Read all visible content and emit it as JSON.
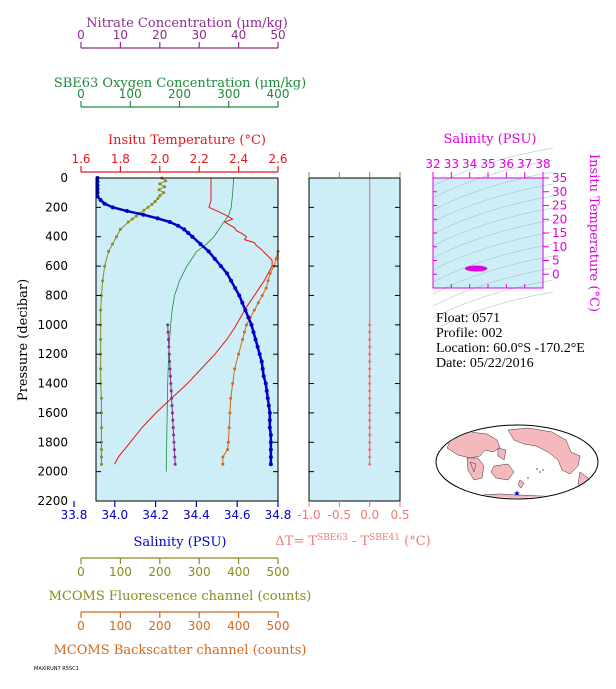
{
  "colors": {
    "nitrate": "#8b2e8b",
    "oxygen": "#1e8b3c",
    "temperature": "#e51717",
    "salinity": "#0000c8",
    "fluorescence": "#8b8b1e",
    "backscatter": "#d2691e",
    "delta_t": "#f07878",
    "ts_axis": "#e000e0",
    "panel_bg": "#cdeef6"
  },
  "chart_data": [
    {
      "type": "line",
      "id": "profile-panel",
      "ylabel": "Pressure (decibar)",
      "ylim": [
        2200,
        0
      ],
      "yticks": [
        "0",
        "200",
        "400",
        "600",
        "800",
        "1000",
        "1200",
        "1400",
        "1600",
        "1800",
        "2000",
        "2200"
      ],
      "axes": [
        {
          "key": "nitrate",
          "title": "Nitrate Concentration (μm/kg)",
          "ticks": [
            "0",
            "10",
            "20",
            "30",
            "40",
            "50"
          ],
          "range": [
            0,
            50
          ]
        },
        {
          "key": "oxygen",
          "title": "SBE63 Oxygen Concentration (μm/kg)",
          "ticks": [
            "0",
            "100",
            "200",
            "300",
            "400"
          ],
          "range": [
            0,
            400
          ]
        },
        {
          "key": "temperature",
          "title": "Insitu Temperature (°C)",
          "ticks": [
            "1.6",
            "1.8",
            "2.0",
            "2.2",
            "2.4",
            "2.6"
          ],
          "range": [
            1.6,
            2.6
          ]
        },
        {
          "key": "salinity",
          "title": "Salinity (PSU)",
          "ticks": [
            "33.8",
            "34.0",
            "34.2",
            "34.4",
            "34.6",
            "34.8"
          ],
          "range": [
            33.8,
            34.8
          ]
        },
        {
          "key": "fluorescence",
          "title": "MCOMS Fluorescence channel (counts)",
          "ticks": [
            "0",
            "100",
            "200",
            "300",
            "400",
            "500"
          ],
          "range": [
            0,
            500
          ]
        },
        {
          "key": "backscatter",
          "title": "MCOMS Backscatter channel (counts)",
          "ticks": [
            "0",
            "100",
            "200",
            "300",
            "400",
            "500"
          ],
          "range": [
            0,
            500
          ]
        }
      ],
      "series": [
        {
          "key": "salinity",
          "axis": "salinity",
          "markers": true,
          "p": [
            0,
            25,
            50,
            75,
            100,
            125,
            150,
            175,
            200,
            225,
            250,
            275,
            300,
            325,
            350,
            375,
            400,
            450,
            500,
            550,
            600,
            650,
            700,
            750,
            800,
            850,
            900,
            950,
            1000,
            1050,
            1100,
            1150,
            1200,
            1250,
            1300,
            1350,
            1400,
            1450,
            1500,
            1550,
            1600,
            1650,
            1700,
            1750,
            1800,
            1850,
            1900,
            1950
          ],
          "v": [
            33.915,
            33.915,
            33.915,
            33.915,
            33.915,
            33.915,
            33.93,
            33.95,
            33.99,
            34.06,
            34.14,
            34.21,
            34.27,
            34.31,
            34.34,
            34.36,
            34.38,
            34.42,
            34.46,
            34.49,
            34.52,
            34.55,
            34.57,
            34.59,
            34.61,
            34.625,
            34.64,
            34.655,
            34.67,
            34.68,
            34.69,
            34.7,
            34.71,
            34.72,
            34.725,
            34.73,
            34.74,
            34.745,
            34.75,
            34.755,
            34.76,
            34.76,
            34.76,
            34.765,
            34.765,
            34.765,
            34.765,
            34.765
          ]
        },
        {
          "key": "temperature",
          "axis": "temperature",
          "markers": false,
          "p": [
            0,
            50,
            100,
            150,
            200,
            230,
            250,
            280,
            300,
            340,
            360,
            380,
            400,
            420,
            440,
            460,
            480,
            520,
            560,
            600,
            650,
            700,
            760,
            820,
            880,
            950,
            1020,
            1100,
            1200,
            1300,
            1400,
            1500,
            1600,
            1700,
            1800,
            1850,
            1900,
            1950
          ],
          "v": [
            2.26,
            2.26,
            2.26,
            2.26,
            2.25,
            2.3,
            2.33,
            2.37,
            2.33,
            2.38,
            2.39,
            2.42,
            2.44,
            2.43,
            2.48,
            2.49,
            2.51,
            2.54,
            2.57,
            2.57,
            2.55,
            2.53,
            2.5,
            2.47,
            2.44,
            2.41,
            2.38,
            2.34,
            2.28,
            2.21,
            2.14,
            2.06,
            1.98,
            1.91,
            1.85,
            1.82,
            1.79,
            1.77
          ]
        },
        {
          "key": "oxygen",
          "axis": "oxygen",
          "markers": false,
          "p": [
            0,
            100,
            200,
            250,
            300,
            350,
            400,
            450,
            500,
            600,
            700,
            800,
            900,
            1000,
            1100,
            1200,
            1400,
            1600,
            1800,
            2000
          ],
          "v": [
            310,
            308,
            305,
            300,
            290,
            280,
            270,
            255,
            235,
            215,
            200,
            190,
            185,
            182,
            180,
            178,
            176,
            175,
            174,
            173
          ]
        },
        {
          "key": "nitrate",
          "axis": "nitrate",
          "markers": true,
          "p": [
            1000,
            1050,
            1100,
            1150,
            1200,
            1250,
            1300,
            1350,
            1400,
            1450,
            1500,
            1550,
            1600,
            1650,
            1700,
            1750,
            1800,
            1850,
            1900,
            1950
          ],
          "v": [
            22.0,
            22.1,
            22.2,
            22.3,
            22.4,
            22.5,
            22.6,
            22.7,
            22.8,
            22.9,
            23.0,
            23.1,
            23.2,
            23.3,
            23.4,
            23.5,
            23.6,
            23.7,
            23.8,
            23.9
          ]
        },
        {
          "key": "fluorescence",
          "axis": "fluorescence",
          "markers": true,
          "p": [
            0,
            20,
            40,
            60,
            80,
            100,
            120,
            140,
            160,
            180,
            200,
            220,
            240,
            260,
            280,
            300,
            350,
            400,
            450,
            500,
            600,
            700,
            800,
            900,
            1000,
            1100,
            1200,
            1300,
            1400,
            1500,
            1600,
            1700,
            1800,
            1850,
            1900,
            1950
          ],
          "v": [
            205,
            215,
            200,
            212,
            198,
            210,
            200,
            195,
            188,
            180,
            170,
            160,
            150,
            140,
            130,
            120,
            100,
            90,
            80,
            70,
            60,
            55,
            52,
            50,
            50,
            50,
            50,
            50,
            50,
            52,
            52,
            52,
            52,
            52,
            52,
            52
          ]
        },
        {
          "key": "backscatter",
          "axis": "backscatter",
          "markers": true,
          "p": [
            500,
            550,
            600,
            650,
            700,
            750,
            800,
            850,
            900,
            950,
            1000,
            1050,
            1100,
            1200,
            1300,
            1400,
            1500,
            1600,
            1700,
            1800,
            1850,
            1900,
            1950
          ],
          "v": [
            500,
            495,
            490,
            480,
            475,
            470,
            460,
            450,
            440,
            430,
            420,
            415,
            410,
            400,
            390,
            385,
            380,
            378,
            376,
            374,
            372,
            360,
            360
          ]
        }
      ]
    },
    {
      "type": "line",
      "id": "delta-t-panel",
      "xlabel_parts": [
        "ΔT= T",
        "SBE63",
        " - T",
        "SBE41",
        " (°C)"
      ],
      "xticks": [
        "-1.0",
        "-0.5",
        "0.0",
        "0.5"
      ],
      "xlim": [
        -1.0,
        0.5
      ],
      "ylim": [
        2200,
        0
      ],
      "series": [
        {
          "key": "delta_t",
          "p": [
            0,
            200,
            400,
            600,
            800,
            1000,
            1050,
            1100,
            1150,
            1200,
            1250,
            1300,
            1350,
            1400,
            1450,
            1500,
            1550,
            1600,
            1650,
            1700,
            1750,
            1800,
            1850,
            1900,
            1950
          ],
          "v": [
            0.0,
            0.0,
            0.0,
            0.0,
            0.0,
            0.0,
            0.0,
            0.0,
            0.0,
            0.0,
            0.0,
            0.0,
            0.0,
            0.0,
            0.0,
            0.0,
            0.0,
            0.0,
            0.0,
            0.0,
            0.0,
            0.0,
            0.0,
            0.0,
            0.0
          ]
        }
      ]
    },
    {
      "type": "scatter",
      "id": "ts-diagram",
      "title": "Salinity (PSU)",
      "xticks": [
        "32",
        "33",
        "34",
        "35",
        "36",
        "37",
        "38"
      ],
      "xlim": [
        32,
        38
      ],
      "ylabel": "Insitu Temperature (°C)",
      "yticks": [
        "35",
        "30",
        "25",
        "20",
        "15",
        "10",
        "5",
        "0"
      ],
      "ylim": [
        -5,
        35
      ],
      "cluster": {
        "salinity_range": [
          33.9,
          34.8
        ],
        "temperature_range": [
          1.6,
          2.6
        ]
      }
    }
  ],
  "float_info": {
    "float": "Float:  0571",
    "profile": "Profile:  002",
    "location": "Location:  60.0°S  -170.2°E",
    "date": "Date:  05/22/2016"
  },
  "footer_code": "MAXIRUN7 R5SC1"
}
